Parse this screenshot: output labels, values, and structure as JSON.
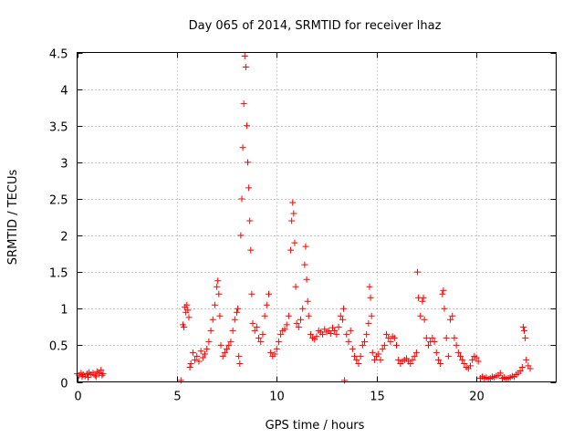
{
  "chart_data": {
    "type": "scatter",
    "title": "Day 065 of 2014, SRMTID for receiver lhaz",
    "xlabel": "GPS time / hours",
    "ylabel": "SRMTID / TECUs",
    "xlim": [
      0,
      24
    ],
    "ylim": [
      0,
      4.5
    ],
    "xticks": [
      0,
      5,
      10,
      15,
      20
    ],
    "xtick_labels": [
      "0",
      "5",
      "10",
      "15",
      "20"
    ],
    "yticks": [
      0,
      0.5,
      1,
      1.5,
      2,
      2.5,
      3,
      3.5,
      4,
      4.5
    ],
    "ytick_labels": [
      "0",
      "0.5",
      "1",
      "1.5",
      "2",
      "2.5",
      "3",
      "3.5",
      "4",
      "4.5"
    ],
    "grid": true,
    "marker": "+",
    "color": "#ff0000",
    "series": [
      {
        "name": "SRMTID",
        "points": [
          [
            0.0,
            0.11
          ],
          [
            0.1,
            0.09
          ],
          [
            0.2,
            0.12
          ],
          [
            0.3,
            0.1
          ],
          [
            0.4,
            0.08
          ],
          [
            0.5,
            0.11
          ],
          [
            0.6,
            0.13
          ],
          [
            0.7,
            0.1
          ],
          [
            0.8,
            0.12
          ],
          [
            0.9,
            0.09
          ],
          [
            1.0,
            0.14
          ],
          [
            1.1,
            0.12
          ],
          [
            1.2,
            0.16
          ],
          [
            1.3,
            0.11
          ],
          [
            0.25,
            0.07
          ],
          [
            0.55,
            0.06
          ],
          [
            0.95,
            0.07
          ],
          [
            1.25,
            0.09
          ],
          [
            5.2,
            0.02
          ],
          [
            5.3,
            0.78
          ],
          [
            5.35,
            0.75
          ],
          [
            5.4,
            1.02
          ],
          [
            5.45,
            0.95
          ],
          [
            5.5,
            1.05
          ],
          [
            5.55,
            0.98
          ],
          [
            5.6,
            0.88
          ],
          [
            5.65,
            0.2
          ],
          [
            5.7,
            0.25
          ],
          [
            5.8,
            0.4
          ],
          [
            5.9,
            0.3
          ],
          [
            6.0,
            0.35
          ],
          [
            6.1,
            0.28
          ],
          [
            6.2,
            0.42
          ],
          [
            6.3,
            0.33
          ],
          [
            6.4,
            0.38
          ],
          [
            6.5,
            0.45
          ],
          [
            6.6,
            0.55
          ],
          [
            6.7,
            0.7
          ],
          [
            6.8,
            0.85
          ],
          [
            6.9,
            1.05
          ],
          [
            7.0,
            1.3
          ],
          [
            7.05,
            1.38
          ],
          [
            7.1,
            1.2
          ],
          [
            7.15,
            0.9
          ],
          [
            7.2,
            0.5
          ],
          [
            7.3,
            0.35
          ],
          [
            7.4,
            0.4
          ],
          [
            7.5,
            0.45
          ],
          [
            7.6,
            0.5
          ],
          [
            7.7,
            0.55
          ],
          [
            7.8,
            0.7
          ],
          [
            7.9,
            0.85
          ],
          [
            8.0,
            0.95
          ],
          [
            8.05,
            1.0
          ],
          [
            8.1,
            0.35
          ],
          [
            8.15,
            0.25
          ],
          [
            8.2,
            2.0
          ],
          [
            8.25,
            2.5
          ],
          [
            8.3,
            3.2
          ],
          [
            8.35,
            3.8
          ],
          [
            8.4,
            4.45
          ],
          [
            8.45,
            4.3
          ],
          [
            8.5,
            3.5
          ],
          [
            8.55,
            3.0
          ],
          [
            8.6,
            2.65
          ],
          [
            8.65,
            2.2
          ],
          [
            8.7,
            1.8
          ],
          [
            8.75,
            1.2
          ],
          [
            8.8,
            0.8
          ],
          [
            8.9,
            0.7
          ],
          [
            9.0,
            0.75
          ],
          [
            9.1,
            0.6
          ],
          [
            9.2,
            0.55
          ],
          [
            9.3,
            0.65
          ],
          [
            9.4,
            0.9
          ],
          [
            9.5,
            1.05
          ],
          [
            9.6,
            1.2
          ],
          [
            9.7,
            0.4
          ],
          [
            9.8,
            0.35
          ],
          [
            9.9,
            0.38
          ],
          [
            10.0,
            0.45
          ],
          [
            10.1,
            0.55
          ],
          [
            10.2,
            0.65
          ],
          [
            10.3,
            0.7
          ],
          [
            10.4,
            0.72
          ],
          [
            10.5,
            0.78
          ],
          [
            10.6,
            0.9
          ],
          [
            10.7,
            1.8
          ],
          [
            10.75,
            2.2
          ],
          [
            10.8,
            2.45
          ],
          [
            10.85,
            2.3
          ],
          [
            10.9,
            1.9
          ],
          [
            10.95,
            1.3
          ],
          [
            11.0,
            0.8
          ],
          [
            11.1,
            0.75
          ],
          [
            11.2,
            0.85
          ],
          [
            11.3,
            1.0
          ],
          [
            11.4,
            1.6
          ],
          [
            11.45,
            1.85
          ],
          [
            11.5,
            1.4
          ],
          [
            11.55,
            1.1
          ],
          [
            11.6,
            0.9
          ],
          [
            11.7,
            0.65
          ],
          [
            11.8,
            0.6
          ],
          [
            11.9,
            0.58
          ],
          [
            12.0,
            0.62
          ],
          [
            12.1,
            0.7
          ],
          [
            12.2,
            0.68
          ],
          [
            12.3,
            0.65
          ],
          [
            12.4,
            0.72
          ],
          [
            12.5,
            0.68
          ],
          [
            12.6,
            0.7
          ],
          [
            12.7,
            0.66
          ],
          [
            12.8,
            0.74
          ],
          [
            12.9,
            0.7
          ],
          [
            13.0,
            0.65
          ],
          [
            13.1,
            0.75
          ],
          [
            13.2,
            0.9
          ],
          [
            13.3,
            0.85
          ],
          [
            13.35,
            1.0
          ],
          [
            13.4,
            0.02
          ],
          [
            13.5,
            0.65
          ],
          [
            13.6,
            0.55
          ],
          [
            13.7,
            0.7
          ],
          [
            13.8,
            0.45
          ],
          [
            13.9,
            0.35
          ],
          [
            14.0,
            0.3
          ],
          [
            14.1,
            0.25
          ],
          [
            14.2,
            0.35
          ],
          [
            14.3,
            0.5
          ],
          [
            14.4,
            0.55
          ],
          [
            14.5,
            0.65
          ],
          [
            14.6,
            0.8
          ],
          [
            14.65,
            1.3
          ],
          [
            14.7,
            1.15
          ],
          [
            14.75,
            0.9
          ],
          [
            14.8,
            0.4
          ],
          [
            14.9,
            0.3
          ],
          [
            15.0,
            0.35
          ],
          [
            15.1,
            0.38
          ],
          [
            15.2,
            0.3
          ],
          [
            15.3,
            0.45
          ],
          [
            15.4,
            0.5
          ],
          [
            15.5,
            0.65
          ],
          [
            15.6,
            0.6
          ],
          [
            15.7,
            0.55
          ],
          [
            15.8,
            0.62
          ],
          [
            15.9,
            0.6
          ],
          [
            16.0,
            0.5
          ],
          [
            16.1,
            0.3
          ],
          [
            16.2,
            0.25
          ],
          [
            16.3,
            0.28
          ],
          [
            16.4,
            0.3
          ],
          [
            16.5,
            0.32
          ],
          [
            16.6,
            0.28
          ],
          [
            16.7,
            0.25
          ],
          [
            16.8,
            0.3
          ],
          [
            16.9,
            0.35
          ],
          [
            17.0,
            0.4
          ],
          [
            17.05,
            1.5
          ],
          [
            17.1,
            1.15
          ],
          [
            17.2,
            0.9
          ],
          [
            17.3,
            1.1
          ],
          [
            17.35,
            1.15
          ],
          [
            17.4,
            0.85
          ],
          [
            17.5,
            0.6
          ],
          [
            17.6,
            0.5
          ],
          [
            17.7,
            0.55
          ],
          [
            17.8,
            0.6
          ],
          [
            17.9,
            0.55
          ],
          [
            18.0,
            0.4
          ],
          [
            18.1,
            0.3
          ],
          [
            18.2,
            0.25
          ],
          [
            18.3,
            1.2
          ],
          [
            18.35,
            1.25
          ],
          [
            18.4,
            1.0
          ],
          [
            18.5,
            0.6
          ],
          [
            18.6,
            0.35
          ],
          [
            18.7,
            0.85
          ],
          [
            18.8,
            0.9
          ],
          [
            18.9,
            0.6
          ],
          [
            19.0,
            0.5
          ],
          [
            19.1,
            0.4
          ],
          [
            19.2,
            0.35
          ],
          [
            19.3,
            0.3
          ],
          [
            19.4,
            0.25
          ],
          [
            19.5,
            0.2
          ],
          [
            19.6,
            0.18
          ],
          [
            19.7,
            0.22
          ],
          [
            19.8,
            0.3
          ],
          [
            19.9,
            0.35
          ],
          [
            20.0,
            0.33
          ],
          [
            20.1,
            0.28
          ],
          [
            20.2,
            0.05
          ],
          [
            20.3,
            0.07
          ],
          [
            20.4,
            0.05
          ],
          [
            20.5,
            0.06
          ],
          [
            20.6,
            0.04
          ],
          [
            20.7,
            0.05
          ],
          [
            20.8,
            0.07
          ],
          [
            20.9,
            0.06
          ],
          [
            21.0,
            0.08
          ],
          [
            21.1,
            0.09
          ],
          [
            21.2,
            0.12
          ],
          [
            21.3,
            0.05
          ],
          [
            21.4,
            0.06
          ],
          [
            21.5,
            0.04
          ],
          [
            21.6,
            0.05
          ],
          [
            21.7,
            0.06
          ],
          [
            21.8,
            0.08
          ],
          [
            21.9,
            0.07
          ],
          [
            22.0,
            0.1
          ],
          [
            22.1,
            0.12
          ],
          [
            22.2,
            0.15
          ],
          [
            22.3,
            0.2
          ],
          [
            22.35,
            0.75
          ],
          [
            22.4,
            0.7
          ],
          [
            22.45,
            0.6
          ],
          [
            22.5,
            0.3
          ],
          [
            22.6,
            0.22
          ],
          [
            22.7,
            0.18
          ]
        ]
      }
    ]
  }
}
